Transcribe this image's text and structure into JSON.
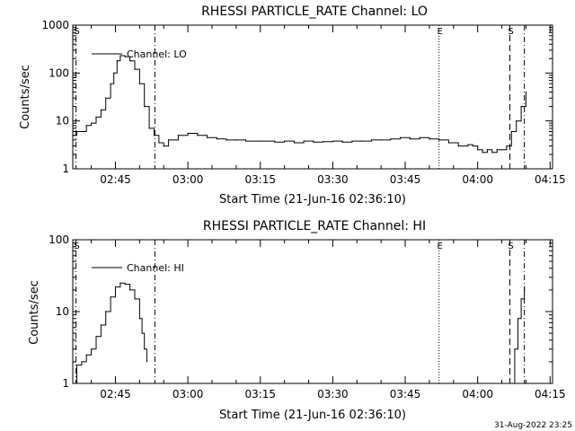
{
  "footer": {
    "timestamp": "31-Aug-2022 23:25"
  },
  "chart_data": [
    {
      "type": "line",
      "title": "RHESSI PARTICLE_RATE Channel: LO",
      "xlabel": "Start Time (21-Jun-16 02:36:10)",
      "ylabel": "Counts/sec",
      "y_scale": "log",
      "ylim": [
        1,
        1000
      ],
      "y_ticks": [
        "1",
        "10",
        "100",
        "1000"
      ],
      "xlim": [
        "02:36:10",
        "04:15:30"
      ],
      "x_ticks": [
        "02:45",
        "03:00",
        "03:15",
        "03:30",
        "03:45",
        "04:00",
        "04:15"
      ],
      "legend": {
        "position": "top-left",
        "entries": [
          "Channel: LO"
        ]
      },
      "markers": [
        {
          "time": "02:36:50",
          "style": "dash-dot",
          "label": "S"
        },
        {
          "time": "02:53:10",
          "style": "dash-dot",
          "label": ""
        },
        {
          "time": "03:52:00",
          "style": "dotted",
          "label": "E"
        },
        {
          "time": "04:06:40",
          "style": "dashed",
          "label": "S"
        },
        {
          "time": "04:09:40",
          "style": "dash-dot",
          "label": ""
        }
      ],
      "series": [
        {
          "name": "Channel: LO",
          "x": [
            "02:36:10",
            "02:37:00",
            "02:38:00",
            "02:39:00",
            "02:40:00",
            "02:41:00",
            "02:42:00",
            "02:43:00",
            "02:44:00",
            "02:44:40",
            "02:45:20",
            "02:46:00",
            "02:47:00",
            "02:48:00",
            "02:49:00",
            "02:50:00",
            "02:51:00",
            "02:52:00",
            "02:53:00",
            "02:54:00",
            "02:55:00",
            "02:56:00",
            "02:58:00",
            "03:00:00",
            "03:02:00",
            "03:04:00",
            "03:06:00",
            "03:08:00",
            "03:10:00",
            "03:12:00",
            "03:15:00",
            "03:18:00",
            "03:20:00",
            "03:22:00",
            "03:24:00",
            "03:26:00",
            "03:28:00",
            "03:30:00",
            "03:32:00",
            "03:34:00",
            "03:36:00",
            "03:38:00",
            "03:40:00",
            "03:42:00",
            "03:44:00",
            "03:46:00",
            "03:48:00",
            "03:50:00",
            "03:52:00",
            "03:54:00",
            "03:56:00",
            "03:58:00",
            "03:59:00",
            "04:00:00",
            "04:01:00",
            "04:02:00",
            "04:03:00",
            "04:04:00",
            "04:05:00",
            "04:06:00",
            "04:07:00",
            "04:08:00",
            "04:09:00",
            "04:10:00"
          ],
          "values": [
            5,
            6,
            6,
            8,
            9,
            12,
            17,
            30,
            60,
            100,
            180,
            230,
            220,
            180,
            120,
            60,
            20,
            7,
            5,
            3.5,
            3,
            4,
            5,
            5.5,
            5,
            4.5,
            4.2,
            4,
            4,
            3.8,
            3.8,
            3.6,
            3.8,
            3.5,
            3.8,
            3.6,
            3.7,
            3.8,
            3.6,
            3.8,
            3.8,
            4,
            4,
            4.2,
            4.5,
            4.2,
            4.5,
            4.2,
            4,
            3.5,
            3,
            3.2,
            3,
            2.5,
            2.2,
            2.5,
            2.2,
            2.5,
            2.5,
            3,
            6,
            10,
            20,
            40
          ]
        }
      ]
    },
    {
      "type": "line",
      "title": "RHESSI PARTICLE_RATE Channel: HI",
      "xlabel": "Start Time (21-Jun-16 02:36:10)",
      "ylabel": "Counts/sec",
      "y_scale": "log",
      "ylim": [
        1,
        100
      ],
      "y_ticks": [
        "1",
        "10",
        "100"
      ],
      "xlim": [
        "02:36:10",
        "04:15:30"
      ],
      "x_ticks": [
        "02:45",
        "03:00",
        "03:15",
        "03:30",
        "03:45",
        "04:00",
        "04:15"
      ],
      "legend": {
        "position": "top-left",
        "entries": [
          "Channel: HI"
        ]
      },
      "markers": [
        {
          "time": "02:36:50",
          "style": "dash-dot",
          "label": "S"
        },
        {
          "time": "02:53:10",
          "style": "dash-dot",
          "label": ""
        },
        {
          "time": "03:52:00",
          "style": "dotted",
          "label": "E"
        },
        {
          "time": "04:06:40",
          "style": "dashed",
          "label": "S"
        },
        {
          "time": "04:09:40",
          "style": "dash-dot",
          "label": ""
        }
      ],
      "series": [
        {
          "name": "Channel: HI",
          "x": [
            "02:36:20",
            "02:37:00",
            "02:38:00",
            "02:39:00",
            "02:40:00",
            "02:41:00",
            "02:42:00",
            "02:43:00",
            "02:44:00",
            "02:45:00",
            "02:46:00",
            "02:47:00",
            "02:48:00",
            "02:49:00",
            "02:50:00",
            "02:50:30",
            "02:51:00",
            "02:51:30"
          ],
          "values": [
            1,
            1.8,
            2,
            2.5,
            3,
            4.5,
            6.5,
            10,
            16,
            22,
            25,
            24,
            20,
            15,
            8,
            5,
            3,
            2
          ]
        },
        {
          "name": "Channel: HI",
          "x": [
            "04:07:10",
            "04:07:40",
            "04:08:20",
            "04:09:00",
            "04:09:40"
          ],
          "values": [
            1,
            3,
            8,
            15,
            22
          ]
        }
      ]
    }
  ]
}
